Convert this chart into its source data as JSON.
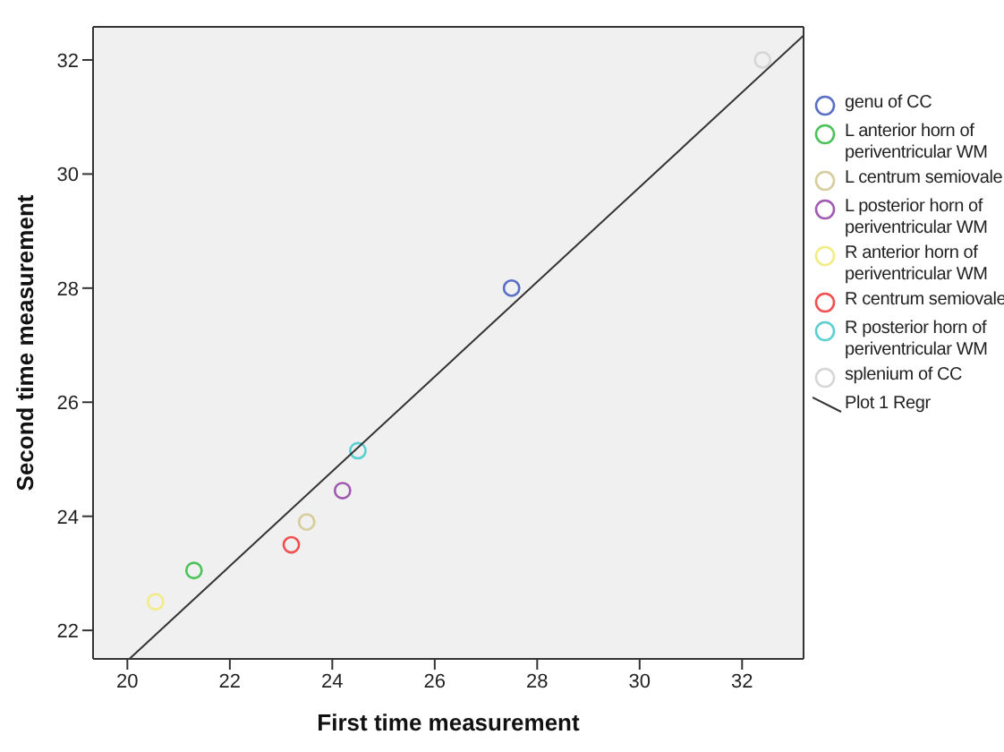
{
  "chart_data": {
    "type": "scatter",
    "xlabel": "First time measurement",
    "ylabel": "Second time measurement",
    "xlim": [
      19.33,
      33.2
    ],
    "ylim": [
      21.5,
      32.58
    ],
    "xticks": [
      20,
      22,
      24,
      26,
      28,
      30,
      32
    ],
    "yticks": [
      22,
      24,
      26,
      28,
      30,
      32
    ],
    "grid": false,
    "legend": "right",
    "marker": "circle",
    "series": [
      {
        "name": "genu of CC",
        "color": "#5a6fc4",
        "x": [
          27.5
        ],
        "values": [
          28.0
        ]
      },
      {
        "name": "L anterior horn of periventricular WM",
        "color": "#4cc35a",
        "x": [
          21.3
        ],
        "values": [
          23.05
        ]
      },
      {
        "name": "L centrum semiovale",
        "color": "#d6cc9c",
        "x": [
          23.5
        ],
        "values": [
          23.9
        ]
      },
      {
        "name": "L posterior horn of periventricular WM",
        "color": "#a05ab0",
        "x": [
          24.2
        ],
        "values": [
          24.45
        ]
      },
      {
        "name": "R anterior horn of periventricular WM",
        "color": "#f2ec84",
        "x": [
          20.55
        ],
        "values": [
          22.5
        ]
      },
      {
        "name": "R centrum semiovale",
        "color": "#f05050",
        "x": [
          23.2
        ],
        "values": [
          23.5
        ]
      },
      {
        "name": "R posterior horn of periventricular WM",
        "color": "#5ccfd0",
        "x": [
          24.5
        ],
        "values": [
          25.15
        ]
      },
      {
        "name": "splenium of CC",
        "color": "#d6d6d6",
        "x": [
          32.4
        ],
        "values": [
          32.0
        ]
      },
      {
        "name": "Plot 1 Regr",
        "type": "line",
        "marker": "none",
        "color": "#333333",
        "x": [
          20.04,
          33.19
        ],
        "values": [
          21.5,
          32.42
        ]
      }
    ]
  }
}
